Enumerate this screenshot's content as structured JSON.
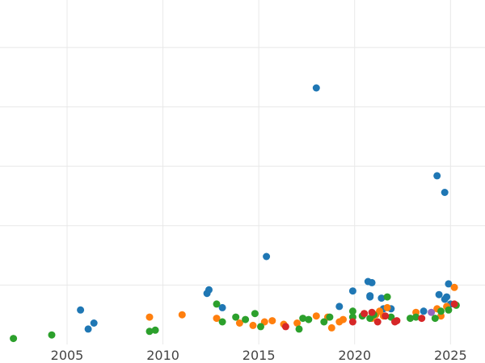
{
  "chart_data": {
    "type": "scatter",
    "title": "",
    "xlabel": "",
    "ylabel": "",
    "xlim": [
      2001.5,
      2026.8
    ],
    "ylim": [
      0,
      29
    ],
    "x_ticks": [
      2005,
      2010,
      2015,
      2020,
      2025
    ],
    "x_tick_labels": [
      "2005",
      "2010",
      "2015",
      "2020",
      "2025"
    ],
    "y_gridlines": [
      5,
      10,
      15,
      20,
      25
    ],
    "grid": true,
    "legend": "none",
    "series": [
      {
        "color": "#1f77b4",
        "points": [
          [
            2005.7,
            2.9
          ],
          [
            2006.1,
            1.3
          ],
          [
            2006.4,
            1.8
          ],
          [
            2012.3,
            4.3
          ],
          [
            2012.4,
            4.6
          ],
          [
            2013.1,
            3.1
          ],
          [
            2015.4,
            7.4
          ],
          [
            2018.0,
            21.6
          ],
          [
            2019.2,
            3.2
          ],
          [
            2019.9,
            4.5
          ],
          [
            2020.7,
            5.3
          ],
          [
            2020.9,
            5.2
          ],
          [
            2020.8,
            4.0
          ],
          [
            2020.8,
            4.1
          ],
          [
            2021.4,
            3.9
          ],
          [
            2021.5,
            3.0
          ],
          [
            2021.9,
            3.0
          ],
          [
            2023.6,
            2.8
          ],
          [
            2024.3,
            14.2
          ],
          [
            2024.4,
            4.2
          ],
          [
            2024.7,
            12.8
          ],
          [
            2024.7,
            3.8
          ],
          [
            2024.8,
            4.0
          ],
          [
            2024.9,
            5.1
          ],
          [
            2025.0,
            3.4
          ]
        ]
      },
      {
        "color": "#ff7f0e",
        "points": [
          [
            2009.3,
            2.3
          ],
          [
            2011.0,
            2.5
          ],
          [
            2012.8,
            2.2
          ],
          [
            2014.0,
            1.8
          ],
          [
            2014.7,
            1.6
          ],
          [
            2015.3,
            1.9
          ],
          [
            2015.7,
            2.0
          ],
          [
            2016.3,
            1.7
          ],
          [
            2017.0,
            1.8
          ],
          [
            2018.0,
            2.4
          ],
          [
            2018.6,
            2.3
          ],
          [
            2018.8,
            1.4
          ],
          [
            2019.2,
            1.9
          ],
          [
            2019.4,
            2.1
          ],
          [
            2020.5,
            2.6
          ],
          [
            2020.9,
            2.2
          ],
          [
            2021.1,
            2.5
          ],
          [
            2021.3,
            2.8
          ],
          [
            2021.5,
            2.4
          ],
          [
            2021.7,
            3.1
          ],
          [
            2023.2,
            2.7
          ],
          [
            2024.3,
            3.0
          ],
          [
            2024.5,
            2.4
          ],
          [
            2024.8,
            3.2
          ],
          [
            2025.2,
            4.8
          ]
        ]
      },
      {
        "color": "#2ca02c",
        "points": [
          [
            2002.2,
            0.5
          ],
          [
            2004.2,
            0.8
          ],
          [
            2009.3,
            1.1
          ],
          [
            2009.6,
            1.2
          ],
          [
            2012.8,
            3.4
          ],
          [
            2013.1,
            1.9
          ],
          [
            2013.8,
            2.3
          ],
          [
            2014.3,
            2.1
          ],
          [
            2014.8,
            2.6
          ],
          [
            2015.1,
            1.5
          ],
          [
            2017.1,
            1.3
          ],
          [
            2017.3,
            2.2
          ],
          [
            2017.6,
            2.1
          ],
          [
            2018.4,
            1.9
          ],
          [
            2018.7,
            2.3
          ],
          [
            2019.9,
            2.8
          ],
          [
            2019.9,
            2.3
          ],
          [
            2020.4,
            2.4
          ],
          [
            2020.8,
            2.2
          ],
          [
            2021.0,
            2.5
          ],
          [
            2021.7,
            4.0
          ],
          [
            2021.9,
            2.3
          ],
          [
            2022.9,
            2.2
          ],
          [
            2023.2,
            2.3
          ],
          [
            2024.2,
            2.2
          ],
          [
            2024.5,
            2.8
          ],
          [
            2024.9,
            2.9
          ],
          [
            2025.3,
            3.3
          ]
        ]
      },
      {
        "color": "#d62728",
        "points": [
          [
            2016.4,
            1.5
          ],
          [
            2019.9,
            1.9
          ],
          [
            2020.5,
            2.6
          ],
          [
            2020.9,
            2.7
          ],
          [
            2021.2,
            1.9
          ],
          [
            2021.6,
            2.4
          ],
          [
            2022.1,
            1.9
          ],
          [
            2022.2,
            2.0
          ],
          [
            2023.5,
            2.2
          ],
          [
            2025.2,
            3.4
          ]
        ]
      },
      {
        "color": "#9467bd",
        "points": [
          [
            2024.0,
            2.7
          ]
        ]
      }
    ]
  }
}
